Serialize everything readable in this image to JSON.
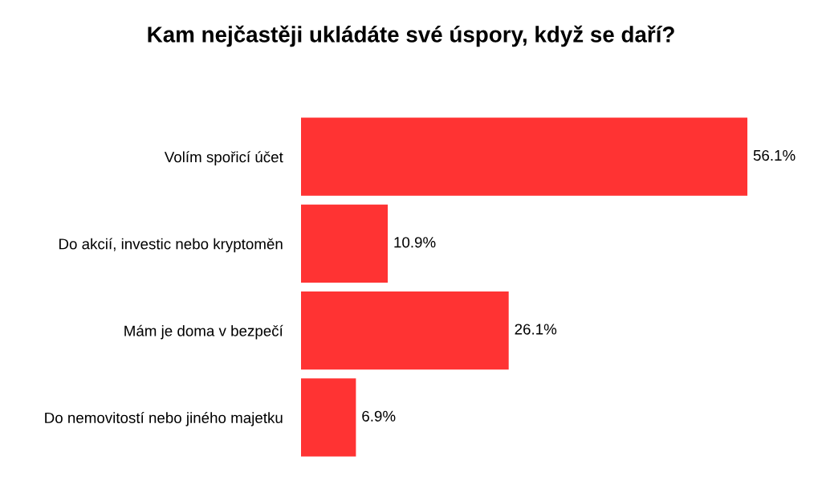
{
  "chart_data": {
    "type": "bar",
    "orientation": "horizontal",
    "title": "Kam nejčastěji ukládáte své úspory, když se daří?",
    "categories": [
      "Volím spořicí účet",
      "Do akcií, investic nebo kryptoměn",
      "Mám je doma v bezpečí",
      "Do nemovitostí nebo jiného majetku"
    ],
    "values": [
      56.1,
      10.9,
      26.1,
      6.9
    ],
    "value_labels": [
      "56.1%",
      "10.9%",
      "26.1%",
      "6.9%"
    ],
    "color": "#ff3333",
    "grid": false,
    "legend": false
  }
}
